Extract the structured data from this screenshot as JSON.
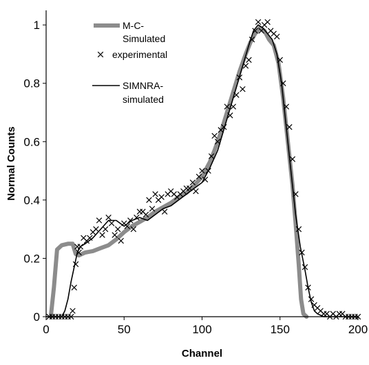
{
  "chart_data": {
    "type": "line",
    "title": "",
    "xlabel": "Channel",
    "ylabel": "Normal Counts",
    "xlim": [
      0,
      200
    ],
    "ylim": [
      0,
      1.05
    ],
    "xticks": [
      0,
      50,
      100,
      150,
      200
    ],
    "yticks": [
      0,
      0.2,
      0.4,
      0.6,
      0.8,
      1
    ],
    "ytick_labels": [
      "0",
      "0.2",
      "0.4",
      "0.6",
      "0.8",
      "1"
    ],
    "grid": false,
    "legend_position": "top-left",
    "series": [
      {
        "name": "M-C-Simulated",
        "legend_lines": [
          "M-C-",
          "Simulated"
        ],
        "style": "thick-line",
        "color": "#8c8c8c",
        "x": [
          3,
          5,
          7,
          10,
          14,
          17,
          19,
          21,
          25,
          30,
          35,
          40,
          45,
          50,
          55,
          60,
          65,
          70,
          75,
          80,
          85,
          90,
          95,
          100,
          105,
          108,
          112,
          116,
          120,
          124,
          128,
          131,
          134,
          137,
          140,
          143,
          146,
          149,
          152,
          155,
          158,
          160,
          162,
          163.5,
          165,
          167
        ],
        "y": [
          0,
          0.1,
          0.23,
          0.245,
          0.25,
          0.25,
          0.215,
          0.21,
          0.22,
          0.225,
          0.235,
          0.245,
          0.265,
          0.29,
          0.31,
          0.325,
          0.34,
          0.36,
          0.375,
          0.39,
          0.41,
          0.425,
          0.45,
          0.48,
          0.53,
          0.57,
          0.63,
          0.7,
          0.77,
          0.84,
          0.9,
          0.94,
          0.97,
          0.99,
          0.98,
          0.95,
          0.93,
          0.87,
          0.75,
          0.6,
          0.45,
          0.32,
          0.18,
          0.06,
          0.01,
          0
        ]
      },
      {
        "name": "experimental",
        "legend_lines": [
          "experimental"
        ],
        "style": "x-marker",
        "color": "#000000",
        "x": [
          2,
          4,
          6,
          8,
          10,
          12,
          14,
          16,
          17,
          18,
          19,
          20,
          21,
          22,
          24,
          26,
          28,
          30,
          32,
          34,
          36,
          38,
          40,
          42,
          44,
          46,
          48,
          50,
          52,
          54,
          56,
          58,
          60,
          62,
          64,
          66,
          68,
          70,
          72,
          74,
          76,
          78,
          80,
          82,
          84,
          86,
          88,
          90,
          92,
          94,
          96,
          98,
          100,
          102,
          104,
          106,
          108,
          110,
          112,
          114,
          116,
          118,
          120,
          122,
          124,
          126,
          128,
          130,
          132,
          134,
          136,
          138,
          140,
          142,
          144,
          146,
          148,
          150,
          152,
          154,
          156,
          158,
          160,
          162,
          164,
          166,
          168,
          170,
          172,
          174,
          176,
          178,
          180,
          182,
          184,
          186,
          188,
          190,
          192,
          194,
          196,
          198,
          200
        ],
        "y": [
          0,
          0,
          0,
          0,
          0,
          0,
          0,
          0,
          0.02,
          0.1,
          0.18,
          0.24,
          0.22,
          0.24,
          0.27,
          0.26,
          0.27,
          0.29,
          0.3,
          0.33,
          0.28,
          0.3,
          0.34,
          0.32,
          0.28,
          0.3,
          0.26,
          0.32,
          0.31,
          0.33,
          0.3,
          0.34,
          0.36,
          0.36,
          0.35,
          0.4,
          0.37,
          0.42,
          0.4,
          0.41,
          0.36,
          0.42,
          0.43,
          0.42,
          0.41,
          0.42,
          0.43,
          0.44,
          0.44,
          0.46,
          0.43,
          0.48,
          0.5,
          0.47,
          0.5,
          0.55,
          0.62,
          0.6,
          0.64,
          0.65,
          0.72,
          0.69,
          0.72,
          0.76,
          0.82,
          0.78,
          0.86,
          0.88,
          0.95,
          0.98,
          1.01,
          0.98,
          1.0,
          1.01,
          0.98,
          0.97,
          0.96,
          0.88,
          0.8,
          0.72,
          0.65,
          0.54,
          0.42,
          0.3,
          0.22,
          0.17,
          0.1,
          0.06,
          0.04,
          0.03,
          0.02,
          0.01,
          0.01,
          0,
          0.01,
          0,
          0.01,
          0.01,
          0,
          0,
          0,
          0,
          0
        ]
      },
      {
        "name": "SIMNRA-simulated",
        "legend_lines": [
          "SIMNRA-",
          "simulated"
        ],
        "style": "thin-line",
        "color": "#000000",
        "x": [
          0,
          10,
          12,
          14,
          16,
          18,
          20,
          22,
          25,
          30,
          35,
          40,
          45,
          50,
          55,
          60,
          65,
          70,
          75,
          80,
          85,
          90,
          95,
          100,
          105,
          110,
          115,
          120,
          125,
          130,
          133,
          136,
          139,
          142,
          145,
          148,
          151,
          154,
          157,
          160,
          163,
          166,
          168,
          170,
          172,
          174,
          176,
          178,
          180,
          200
        ],
        "y": [
          0,
          0,
          0.02,
          0.06,
          0.12,
          0.17,
          0.22,
          0.24,
          0.25,
          0.27,
          0.3,
          0.33,
          0.33,
          0.31,
          0.33,
          0.34,
          0.33,
          0.35,
          0.37,
          0.38,
          0.4,
          0.42,
          0.44,
          0.46,
          0.51,
          0.57,
          0.66,
          0.75,
          0.84,
          0.93,
          0.98,
          1.0,
          0.99,
          0.97,
          0.95,
          0.9,
          0.8,
          0.65,
          0.5,
          0.35,
          0.24,
          0.16,
          0.1,
          0.05,
          0.02,
          0.01,
          0.005,
          0,
          0,
          0
        ]
      }
    ]
  }
}
